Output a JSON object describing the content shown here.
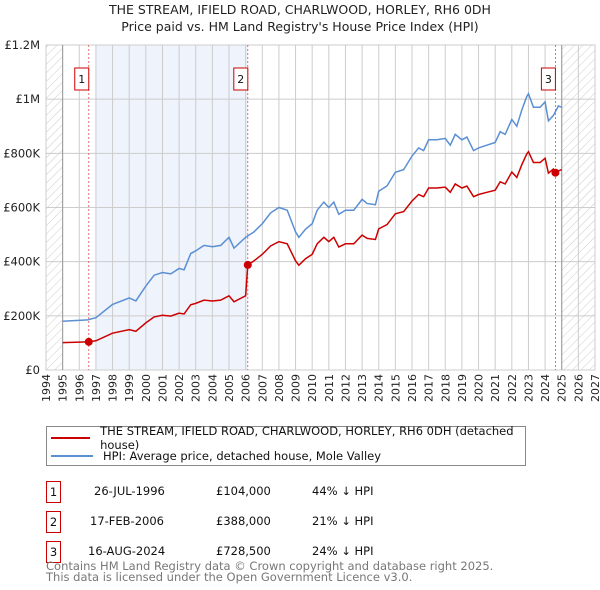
{
  "chart_data": {
    "type": "line",
    "title": "THE STREAM, IFIELD ROAD, CHARLWOOD, HORLEY, RH6 0DH",
    "subtitle": "Price paid vs. HM Land Registry's House Price Index (HPI)",
    "xlim": [
      1994,
      2027
    ],
    "ylim": [
      0,
      1200000
    ],
    "x_ticks": [
      "1994",
      "1995",
      "1996",
      "1997",
      "1998",
      "1999",
      "2000",
      "2001",
      "2002",
      "2003",
      "2004",
      "2005",
      "2006",
      "2007",
      "2008",
      "2009",
      "2010",
      "2011",
      "2012",
      "2013",
      "2014",
      "2015",
      "2016",
      "2017",
      "2018",
      "2019",
      "2020",
      "2021",
      "2022",
      "2023",
      "2024",
      "2025",
      "2026",
      "2027"
    ],
    "y_ticks": [
      {
        "v": 0,
        "label": "£0"
      },
      {
        "v": 200000,
        "label": "£200K"
      },
      {
        "v": 400000,
        "label": "£400K"
      },
      {
        "v": 600000,
        "label": "£600K"
      },
      {
        "v": 800000,
        "label": "£800K"
      },
      {
        "v": 1000000,
        "label": "£1M"
      },
      {
        "v": 1200000,
        "label": "£1.2M"
      }
    ],
    "grid": true,
    "shaded_range": [
      1997,
      2006.13
    ],
    "hatched_ranges": [
      [
        1994,
        1995
      ],
      [
        2025,
        2027
      ]
    ],
    "series": [
      {
        "name": "HPI: Average price, detached house, Mole Valley",
        "color": "#5b8fd4",
        "x": [
          1995,
          1996.5,
          1997,
          1998,
          1999,
          1999.4,
          2000,
          2000.5,
          2001,
          2001.5,
          2002,
          2002.3,
          2002.7,
          2003,
          2003.5,
          2004,
          2004.5,
          2005,
          2005.3,
          2006,
          2006.5,
          2007,
          2007.5,
          2008,
          2008.5,
          2009,
          2009.2,
          2009.6,
          2010,
          2010.3,
          2010.7,
          2011,
          2011.3,
          2011.6,
          2012,
          2012.5,
          2013,
          2013.3,
          2013.8,
          2014,
          2014.5,
          2015,
          2015.5,
          2016,
          2016.4,
          2016.7,
          2017,
          2017.5,
          2018,
          2018.3,
          2018.6,
          2019,
          2019.3,
          2019.7,
          2020,
          2020.5,
          2021,
          2021.3,
          2021.6,
          2022,
          2022.3,
          2022.6,
          2022.9,
          2023,
          2023.3,
          2023.7,
          2024,
          2024.2,
          2024.5,
          2024.8,
          2025
        ],
        "y": [
          180,
          185,
          193,
          242,
          266,
          255,
          310,
          350,
          360,
          355,
          375,
          370,
          430,
          440,
          460,
          455,
          460,
          490,
          450,
          490,
          510,
          540,
          580,
          600,
          590,
          510,
          490,
          520,
          540,
          590,
          620,
          600,
          620,
          575,
          590,
          590,
          630,
          615,
          610,
          660,
          680,
          730,
          740,
          790,
          820,
          810,
          850,
          850,
          855,
          830,
          870,
          850,
          860,
          810,
          820,
          830,
          840,
          880,
          870,
          925,
          900,
          960,
          1010,
          1020,
          970,
          970,
          990,
          920,
          940,
          975,
          970
        ]
      },
      {
        "name": "THE STREAM, IFIELD ROAD, CHARLWOOD, HORLEY, RH6 0DH (detached house)",
        "color": "#cc0000",
        "x": [
          1995,
          1996.5,
          1997,
          1998,
          1999,
          1999.4,
          2000,
          2000.5,
          2001,
          2001.5,
          2002,
          2002.3,
          2002.7,
          2003,
          2003.5,
          2004,
          2004.5,
          2005,
          2005.3,
          2006,
          2006.13,
          2006.5,
          2007,
          2007.5,
          2008,
          2008.5,
          2009,
          2009.2,
          2009.6,
          2010,
          2010.3,
          2010.7,
          2011,
          2011.3,
          2011.6,
          2012,
          2012.5,
          2013,
          2013.3,
          2013.8,
          2014,
          2014.5,
          2015,
          2015.5,
          2016,
          2016.4,
          2016.7,
          2017,
          2017.5,
          2018,
          2018.3,
          2018.6,
          2019,
          2019.3,
          2019.7,
          2020,
          2020.5,
          2021,
          2021.3,
          2021.6,
          2022,
          2022.3,
          2022.6,
          2022.9,
          2023,
          2023.3,
          2023.7,
          2024,
          2024.2,
          2024.5,
          2024.62,
          2024.8,
          2025
        ],
        "y": [
          101,
          104,
          108,
          136,
          149,
          143,
          174,
          196,
          202,
          199,
          210,
          207,
          241,
          246,
          258,
          255,
          258,
          274,
          252,
          274,
          388,
          403,
          427,
          458,
          474,
          466,
          403,
          387,
          411,
          427,
          466,
          490,
          474,
          490,
          454,
          466,
          466,
          498,
          486,
          482,
          521,
          537,
          577,
          585,
          624,
          648,
          640,
          672,
          672,
          675,
          656,
          687,
          672,
          679,
          640,
          648,
          656,
          664,
          695,
          687,
          731,
          711,
          758,
          798,
          806,
          766,
          766,
          782,
          727,
          742,
          728.5,
          735,
          740
        ]
      }
    ],
    "y_units": "thousands GBP",
    "sales": [
      {
        "n": "1",
        "x": 1996.57,
        "date": "26-JUL-1996",
        "price": "£104,000",
        "value": 104,
        "hpi": "44% ↓ HPI"
      },
      {
        "n": "2",
        "x": 2006.13,
        "date": "17-FEB-2006",
        "price": "£388,000",
        "value": 388,
        "hpi": "21% ↓ HPI"
      },
      {
        "n": "3",
        "x": 2024.62,
        "date": "16-AUG-2024",
        "price": "£728,500",
        "value": 728.5,
        "hpi": "24% ↓ HPI"
      }
    ]
  },
  "legend": {
    "red": "THE STREAM, IFIELD ROAD, CHARLWOOD, HORLEY, RH6 0DH (detached house)",
    "blue": "HPI: Average price, detached house, Mole Valley"
  },
  "footer": {
    "line1": "Contains HM Land Registry data © Crown copyright and database right 2025.",
    "line2": "This data is licensed under the Open Government Licence v3.0."
  }
}
